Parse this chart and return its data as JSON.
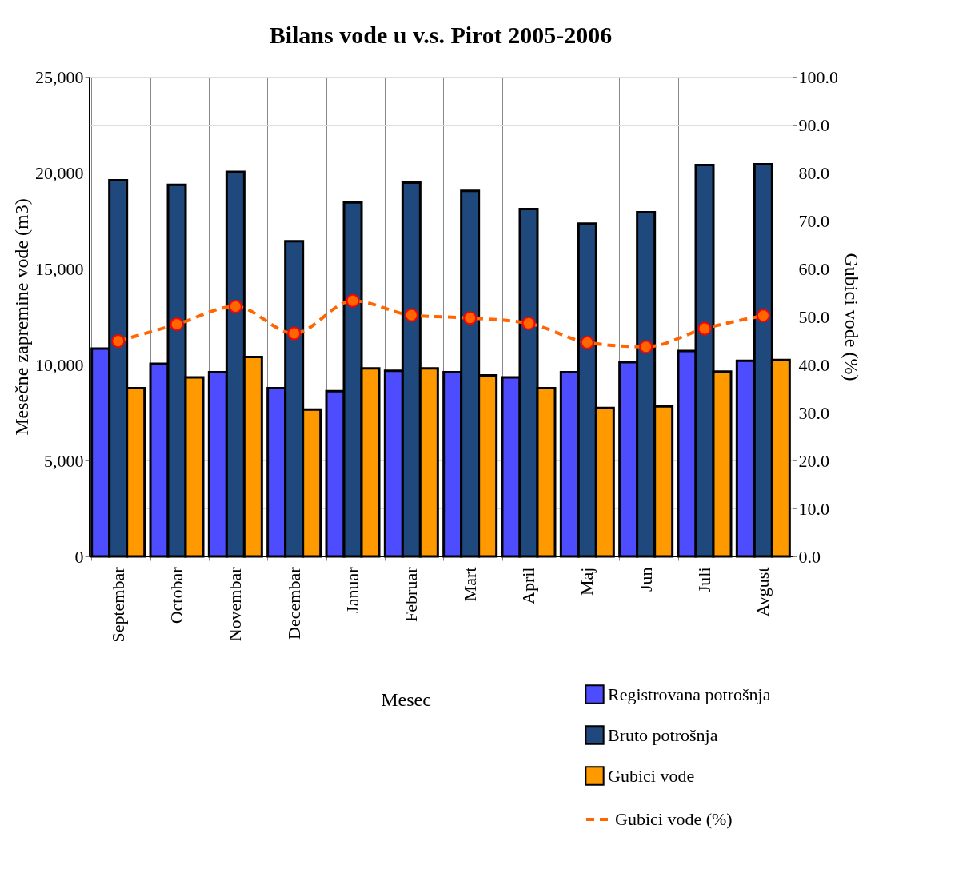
{
  "chart_data": {
    "type": "bar",
    "title": "Bilans vode u v.s. Pirot 2005-2006",
    "xlabel": "Mesec",
    "ylabel": "Mesečne zapremine vode (m3)",
    "y2label": "Gubici vode (%)",
    "categories": [
      "Septembar",
      "Octobar",
      "Novembar",
      "Decembar",
      "Januar",
      "Februar",
      "Mart",
      "April",
      "Maj",
      "Jun",
      "Juli",
      "Avgust"
    ],
    "series": [
      {
        "name": "Registrovana potrošnja",
        "color": "#4d4dff",
        "values": [
          10830,
          10040,
          9600,
          8770,
          8610,
          9680,
          9600,
          9330,
          9600,
          10120,
          10710,
          10200
        ]
      },
      {
        "name": "Bruto potrošnja",
        "color": "#1f497d",
        "values": [
          19600,
          19360,
          20040,
          16430,
          18450,
          19480,
          19050,
          18100,
          17340,
          17940,
          20400,
          20440
        ]
      },
      {
        "name": "Gubici vode",
        "color": "#ff9900",
        "values": [
          8770,
          9330,
          10400,
          7660,
          9800,
          9800,
          9440,
          8770,
          7740,
          7820,
          9640,
          10240
        ]
      },
      {
        "name": "Gubici vode (%)",
        "type": "line",
        "axis": "y2",
        "color": "#ff6600",
        "marker": "circle",
        "line_style": "dashed",
        "values": [
          44.9,
          48.4,
          52.1,
          46.5,
          53.3,
          50.3,
          49.7,
          48.6,
          44.6,
          43.7,
          47.5,
          50.2
        ]
      }
    ],
    "ylim": [
      0,
      25000
    ],
    "yticks": [
      0,
      {
        "value": 5000,
        "label": "5,000"
      },
      {
        "value": 10000,
        "label": "10,000"
      },
      {
        "value": 15000,
        "label": "15,000"
      },
      {
        "value": 20000,
        "label": "20,000"
      },
      {
        "value": 25000,
        "label": "25,000"
      }
    ],
    "y2lim": [
      0,
      100
    ],
    "y2ticks": [
      {
        "value": 0,
        "label": "0.0"
      },
      {
        "value": 10,
        "label": "10.0"
      },
      {
        "value": 20,
        "label": "20.0"
      },
      {
        "value": 30,
        "label": "30.0"
      },
      {
        "value": 40,
        "label": "40.0"
      },
      {
        "value": 50,
        "label": "50.0"
      },
      {
        "value": 60,
        "label": "60.0"
      },
      {
        "value": 70,
        "label": "70.0"
      },
      {
        "value": 80,
        "label": "80.0"
      },
      {
        "value": 90,
        "label": "90.0"
      },
      {
        "value": 100,
        "label": "100.0"
      }
    ],
    "grid": true,
    "legend": "bottom right"
  }
}
